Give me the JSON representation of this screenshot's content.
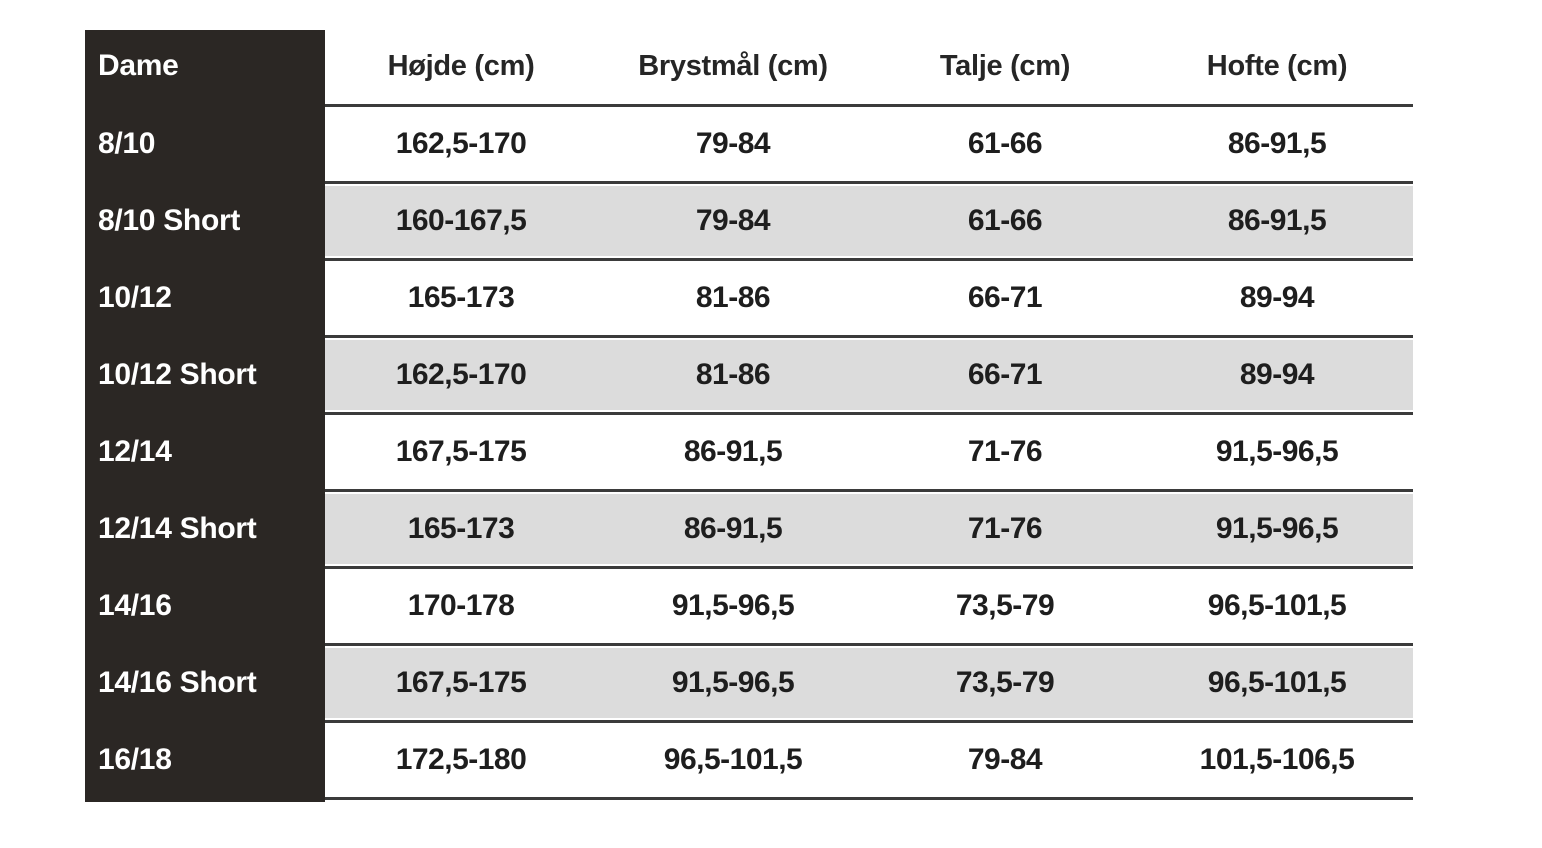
{
  "table": {
    "title_cell": "Dame",
    "columns": [
      {
        "key": "height",
        "label": "Højde (cm)"
      },
      {
        "key": "chest",
        "label": "Brystmål (cm)"
      },
      {
        "key": "waist",
        "label": "Talje (cm)"
      },
      {
        "key": "hip",
        "label": "Hofte (cm)"
      }
    ],
    "rows": [
      {
        "label": "8/10",
        "values": [
          "162,5-170",
          "79-84",
          "61-66",
          "86-91,5"
        ]
      },
      {
        "label": "8/10 Short",
        "values": [
          "160-167,5",
          "79-84",
          "61-66",
          "86-91,5"
        ]
      },
      {
        "label": "10/12",
        "values": [
          "165-173",
          "81-86",
          "66-71",
          "89-94"
        ]
      },
      {
        "label": "10/12 Short",
        "values": [
          "162,5-170",
          "81-86",
          "66-71",
          "89-94"
        ]
      },
      {
        "label": "12/14",
        "values": [
          "167,5-175",
          "86-91,5",
          "71-76",
          "91,5-96,5"
        ]
      },
      {
        "label": "12/14 Short",
        "values": [
          "165-173",
          "86-91,5",
          "71-76",
          "91,5-96,5"
        ]
      },
      {
        "label": "14/16",
        "values": [
          "170-178",
          "91,5-96,5",
          "73,5-79",
          "96,5-101,5"
        ]
      },
      {
        "label": "14/16 Short",
        "values": [
          "167,5-175",
          "91,5-96,5",
          "73,5-79",
          "96,5-101,5"
        ]
      },
      {
        "label": "16/18",
        "values": [
          "172,5-180",
          "96,5-101,5",
          "79-84",
          "101,5-106,5"
        ]
      }
    ],
    "colors": {
      "dark_column": "#2b2724",
      "rule": "#3b3b3b",
      "stripe": "#dcdcdc",
      "text": "#1e1e1e"
    }
  }
}
